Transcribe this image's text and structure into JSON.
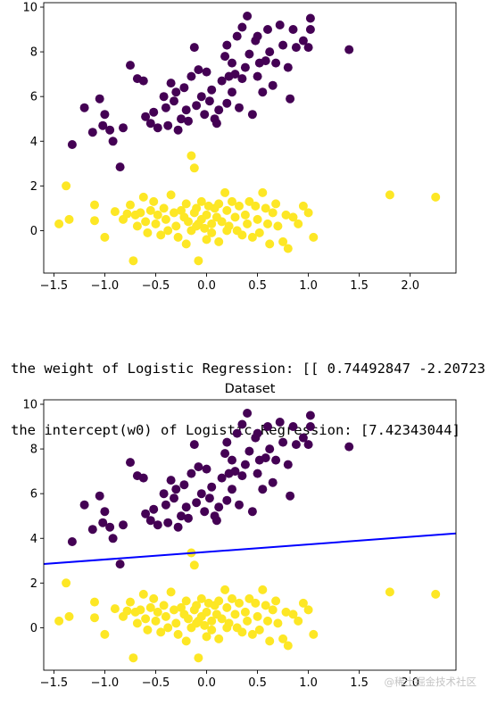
{
  "output": {
    "line1": "the weight of Logistic Regression: [[ 0.74492847 -2.20723",
    "line2": "the intercept(w0) of Logistic Regression: [7.42343044]"
  },
  "watermark": "@稀土掘金技术社区",
  "chart_data": [
    {
      "type": "scatter",
      "title": "",
      "xlabel": "",
      "ylabel": "",
      "xlim": [
        -1.6,
        2.45
      ],
      "ylim": [
        -1.9,
        10.2
      ],
      "xticks": [
        -1.5,
        -1.0,
        -0.5,
        0.0,
        0.5,
        1.0,
        1.5,
        2.0
      ],
      "xtick_labels": [
        "−1.5",
        "−1.0",
        "−0.5",
        "0.0",
        "0.5",
        "1.0",
        "1.5",
        "2.0"
      ],
      "yticks": [
        0,
        2,
        4,
        6,
        8,
        10
      ],
      "ytick_labels": [
        "0",
        "2",
        "4",
        "6",
        "8",
        "10"
      ],
      "grid": false,
      "series": [
        {
          "color": "#440154",
          "points": [
            [
              -1.32,
              3.85
            ],
            [
              -1.2,
              5.5
            ],
            [
              -1.12,
              4.4
            ],
            [
              -1.05,
              5.9
            ],
            [
              -1.02,
              4.7
            ],
            [
              -1.0,
              5.2
            ],
            [
              -0.95,
              4.5
            ],
            [
              -0.92,
              4.0
            ],
            [
              -0.82,
              4.6
            ],
            [
              -0.75,
              7.4
            ],
            [
              -0.68,
              6.8
            ],
            [
              -0.62,
              6.7
            ],
            [
              -0.6,
              5.1
            ],
            [
              -0.55,
              4.8
            ],
            [
              -0.52,
              5.3
            ],
            [
              -0.48,
              4.6
            ],
            [
              -0.42,
              6.0
            ],
            [
              -0.4,
              5.5
            ],
            [
              -0.38,
              4.7
            ],
            [
              -0.35,
              6.6
            ],
            [
              -0.32,
              5.8
            ],
            [
              -0.3,
              6.2
            ],
            [
              -0.28,
              4.5
            ],
            [
              -0.25,
              5.0
            ],
            [
              -0.22,
              6.4
            ],
            [
              -0.2,
              5.4
            ],
            [
              -0.18,
              4.9
            ],
            [
              -0.15,
              6.9
            ],
            [
              -0.12,
              8.2
            ],
            [
              -0.1,
              5.6
            ],
            [
              -0.08,
              7.2
            ],
            [
              -0.05,
              6.0
            ],
            [
              -0.02,
              5.2
            ],
            [
              0.0,
              7.1
            ],
            [
              0.03,
              5.8
            ],
            [
              0.05,
              6.3
            ],
            [
              0.08,
              5.0
            ],
            [
              0.1,
              4.8
            ],
            [
              0.12,
              5.4
            ],
            [
              0.15,
              6.7
            ],
            [
              0.18,
              7.8
            ],
            [
              0.2,
              8.3
            ],
            [
              0.2,
              5.7
            ],
            [
              0.22,
              6.9
            ],
            [
              0.25,
              7.5
            ],
            [
              0.25,
              6.2
            ],
            [
              0.28,
              7.0
            ],
            [
              0.3,
              8.7
            ],
            [
              0.32,
              5.5
            ],
            [
              0.35,
              6.8
            ],
            [
              0.35,
              9.1
            ],
            [
              0.38,
              7.3
            ],
            [
              0.4,
              9.6
            ],
            [
              0.42,
              7.9
            ],
            [
              0.45,
              5.2
            ],
            [
              0.48,
              8.5
            ],
            [
              0.5,
              8.7
            ],
            [
              0.5,
              6.9
            ],
            [
              0.52,
              7.5
            ],
            [
              0.55,
              6.2
            ],
            [
              0.58,
              7.6
            ],
            [
              0.6,
              9.0
            ],
            [
              0.62,
              8.0
            ],
            [
              0.65,
              6.5
            ],
            [
              0.68,
              7.5
            ],
            [
              0.72,
              9.2
            ],
            [
              0.75,
              8.3
            ],
            [
              0.8,
              7.3
            ],
            [
              0.82,
              5.9
            ],
            [
              0.85,
              9.0
            ],
            [
              0.88,
              8.2
            ],
            [
              0.95,
              8.5
            ],
            [
              1.02,
              9.0
            ],
            [
              1.02,
              9.5
            ],
            [
              1.0,
              8.2
            ],
            [
              1.4,
              8.1
            ],
            [
              -0.85,
              2.85
            ]
          ]
        },
        {
          "color": "#fde725",
          "points": [
            [
              -1.45,
              0.3
            ],
            [
              -1.38,
              2.0
            ],
            [
              -1.35,
              0.5
            ],
            [
              -1.1,
              0.45
            ],
            [
              -1.1,
              1.15
            ],
            [
              -1.0,
              -0.3
            ],
            [
              -0.9,
              0.85
            ],
            [
              -0.82,
              0.5
            ],
            [
              -0.78,
              0.75
            ],
            [
              -0.75,
              1.15
            ],
            [
              -0.72,
              -1.35
            ],
            [
              -0.7,
              0.7
            ],
            [
              -0.68,
              0.2
            ],
            [
              -0.65,
              0.8
            ],
            [
              -0.62,
              1.5
            ],
            [
              -0.6,
              0.4
            ],
            [
              -0.58,
              -0.1
            ],
            [
              -0.55,
              0.9
            ],
            [
              -0.52,
              1.3
            ],
            [
              -0.5,
              0.3
            ],
            [
              -0.48,
              0.7
            ],
            [
              -0.45,
              -0.2
            ],
            [
              -0.42,
              1.0
            ],
            [
              -0.4,
              0.5
            ],
            [
              -0.38,
              0.0
            ],
            [
              -0.35,
              1.6
            ],
            [
              -0.32,
              0.8
            ],
            [
              -0.3,
              0.2
            ],
            [
              -0.28,
              -0.3
            ],
            [
              -0.25,
              0.9
            ],
            [
              -0.22,
              0.6
            ],
            [
              -0.2,
              1.2
            ],
            [
              -0.2,
              -0.6
            ],
            [
              -0.18,
              0.4
            ],
            [
              -0.15,
              3.35
            ],
            [
              -0.15,
              0.0
            ],
            [
              -0.12,
              2.8
            ],
            [
              -0.12,
              0.8
            ],
            [
              -0.1,
              1.0
            ],
            [
              -0.1,
              0.2
            ],
            [
              -0.08,
              -1.35
            ],
            [
              -0.08,
              0.3
            ],
            [
              -0.05,
              0.5
            ],
            [
              -0.05,
              1.3
            ],
            [
              -0.02,
              0.1
            ],
            [
              0.0,
              -0.4
            ],
            [
              0.0,
              0.7
            ],
            [
              0.02,
              1.1
            ],
            [
              0.05,
              0.3
            ],
            [
              0.05,
              -0.1
            ],
            [
              0.08,
              1.0
            ],
            [
              0.1,
              0.6
            ],
            [
              0.12,
              1.2
            ],
            [
              0.12,
              -0.5
            ],
            [
              0.15,
              0.4
            ],
            [
              0.18,
              1.7
            ],
            [
              0.2,
              0.0
            ],
            [
              0.2,
              0.9
            ],
            [
              0.22,
              0.2
            ],
            [
              0.25,
              1.3
            ],
            [
              0.28,
              0.6
            ],
            [
              0.3,
              0.0
            ],
            [
              0.32,
              1.1
            ],
            [
              0.35,
              -0.2
            ],
            [
              0.38,
              0.7
            ],
            [
              0.4,
              0.3
            ],
            [
              0.42,
              1.3
            ],
            [
              0.45,
              -0.3
            ],
            [
              0.48,
              1.1
            ],
            [
              0.5,
              0.5
            ],
            [
              0.52,
              -0.1
            ],
            [
              0.55,
              1.7
            ],
            [
              0.58,
              1.0
            ],
            [
              0.6,
              0.3
            ],
            [
              0.62,
              -0.6
            ],
            [
              0.65,
              0.8
            ],
            [
              0.68,
              1.2
            ],
            [
              0.7,
              0.2
            ],
            [
              0.75,
              -0.5
            ],
            [
              0.78,
              0.7
            ],
            [
              0.8,
              -0.8
            ],
            [
              0.85,
              0.6
            ],
            [
              0.9,
              0.3
            ],
            [
              0.95,
              1.1
            ],
            [
              1.0,
              0.8
            ],
            [
              1.05,
              -0.3
            ],
            [
              1.8,
              1.6
            ],
            [
              2.25,
              1.5
            ]
          ]
        }
      ]
    },
    {
      "type": "scatter",
      "title": "Dataset",
      "xlabel": "",
      "ylabel": "",
      "xlim": [
        -1.6,
        2.45
      ],
      "ylim": [
        -1.9,
        10.2
      ],
      "xticks": [
        -1.5,
        -1.0,
        -0.5,
        0.0,
        0.5,
        1.0,
        1.5,
        2.0
      ],
      "xtick_labels": [
        "−1.5",
        "−1.0",
        "−0.5",
        "0.0",
        "0.5",
        "1.0",
        "1.5",
        "2.0"
      ],
      "yticks": [
        0,
        2,
        4,
        6,
        8,
        10
      ],
      "ytick_labels": [
        "0",
        "2",
        "4",
        "6",
        "8",
        "10"
      ],
      "grid": false,
      "decision_line": {
        "color": "#0000ff",
        "x": [
          -1.6,
          2.45
        ],
        "y": [
          2.85,
          4.22
        ]
      },
      "series": "same as chart 1"
    }
  ]
}
